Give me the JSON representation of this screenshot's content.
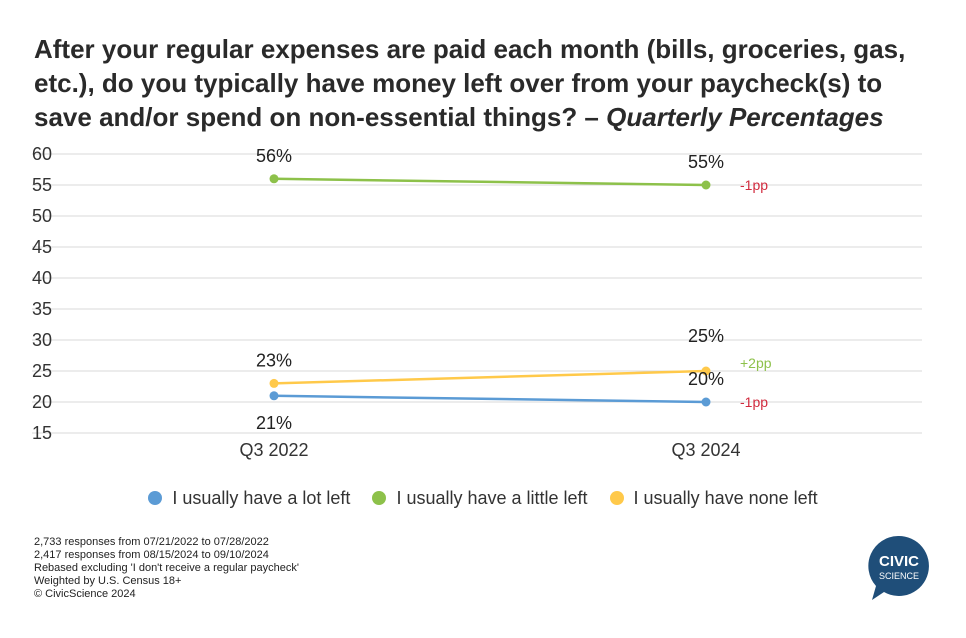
{
  "title": {
    "main": "After your regular expenses are paid each month (bills, groceries, gas, etc.), do you typically have money left over from your paycheck(s) to save and/or spend on non-essential things? –",
    "sub": "Quarterly Percentages"
  },
  "colors": {
    "a_lot": "#5b9bd5",
    "a_little": "#8dc14a",
    "none": "#ffc94a",
    "negative": "#d12a3d",
    "positive": "#8dc14a",
    "logo": "#1f4e79"
  },
  "chart_data": {
    "type": "line",
    "categories": [
      "Q3 2022",
      "Q3 2024"
    ],
    "ylim": [
      15,
      60
    ],
    "yticks": [
      15,
      20,
      25,
      30,
      35,
      40,
      45,
      50,
      55,
      60
    ],
    "grid": true,
    "legend_position": "bottom",
    "series": [
      {
        "key": "a_lot",
        "name": "I usually have a lot left",
        "values": [
          21,
          20
        ],
        "labels": [
          "21%",
          "20%"
        ],
        "change": "-1pp",
        "change_sign": "negative"
      },
      {
        "key": "a_little",
        "name": "I usually have a little left",
        "values": [
          56,
          55
        ],
        "labels": [
          "56%",
          "55%"
        ],
        "change": "-1pp",
        "change_sign": "negative"
      },
      {
        "key": "none",
        "name": "I usually have none left",
        "values": [
          23,
          25
        ],
        "labels": [
          "23%",
          "25%"
        ],
        "change": "+2pp",
        "change_sign": "positive"
      }
    ]
  },
  "footnotes": [
    "2,733 responses from 07/21/2022 to 07/28/2022",
    "2,417 responses from 08/15/2024 to 09/10/2024",
    "Rebased excluding 'I don't receive a regular paycheck'",
    "Weighted by U.S. Census 18+",
    "© CivicScience 2024"
  ],
  "logo": {
    "line1": "CIVIC",
    "line2": "SCIENCE"
  }
}
